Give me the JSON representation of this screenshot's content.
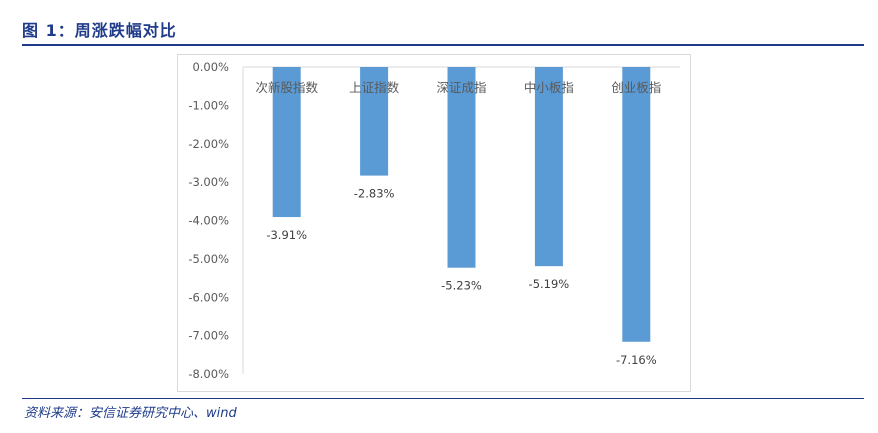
{
  "figure": {
    "title": "图 1：周涨跌幅对比",
    "source": "资料来源：安信证券研究中心、wind"
  },
  "chart_data": {
    "type": "bar",
    "title": "",
    "xlabel": "",
    "ylabel": "",
    "categories": [
      "次新股指数",
      "上证指数",
      "深证成指",
      "中小板指",
      "创业板指"
    ],
    "values": [
      -3.91,
      -2.83,
      -5.23,
      -5.19,
      -7.16
    ],
    "data_labels": [
      "-3.91%",
      "-2.83%",
      "-5.23%",
      "-5.19%",
      "-7.16%"
    ],
    "ylim": [
      -8,
      0
    ],
    "yticks": [
      "0.00%",
      "-1.00%",
      "-2.00%",
      "-3.00%",
      "-4.00%",
      "-5.00%",
      "-6.00%",
      "-7.00%",
      "-8.00%"
    ],
    "bar_color": "#5b9bd5",
    "grid": false,
    "legend": "none",
    "category_axis_position": "top"
  }
}
